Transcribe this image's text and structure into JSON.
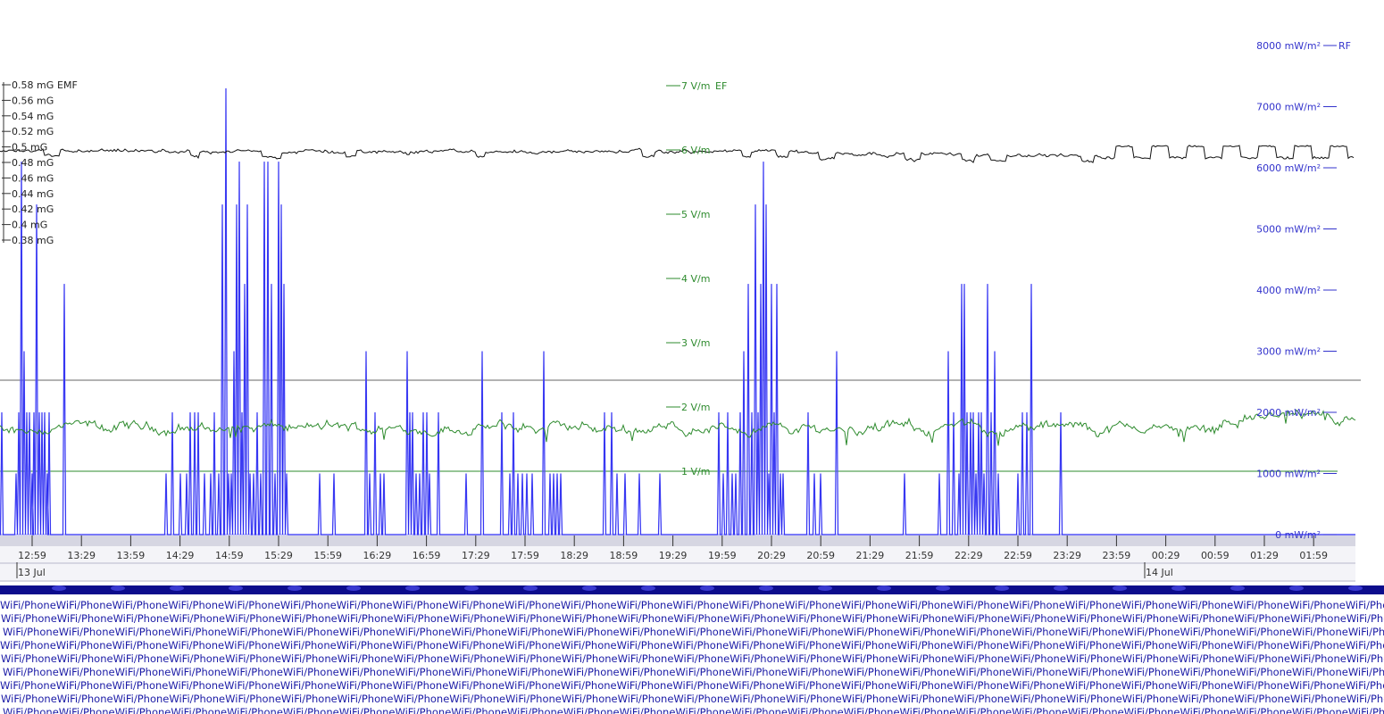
{
  "chart_data": {
    "type": "line",
    "colors": {
      "emf": "#111111",
      "ef": "#2e8b2e",
      "rf": "#2222ee",
      "rf_light": "#8a8aff",
      "axis_rf": "#3333cc"
    },
    "axes": {
      "emf": {
        "ticks": [
          "0.58 mG",
          "0.56 mG",
          "0.54 mG",
          "0.52 mG",
          "0.5 mG",
          "0.48 mG",
          "0.46 mG",
          "0.44 mG",
          "0.42 mG",
          "0.4 mG",
          "0.38 mG"
        ],
        "name": "EMF",
        "ylim": [
          0.38,
          0.58
        ]
      },
      "ef": {
        "ticks": [
          "7 V/m",
          "6 V/m",
          "5 V/m",
          "4 V/m",
          "3 V/m",
          "2 V/m",
          "1 V/m"
        ],
        "name": "EF",
        "ylim": [
          1,
          7
        ]
      },
      "rf": {
        "ticks": [
          "8000 mW/m²",
          "7000 mW/m²",
          "6000 mW/m²",
          "5000 mW/m²",
          "4000 mW/m²",
          "3000 mW/m²",
          "2000 mW/m²",
          "1000 mW/m²",
          "0 mW/m²"
        ],
        "name": "RF",
        "ylim": [
          0,
          8000
        ]
      }
    },
    "x_ticks": [
      "12:59",
      "13:29",
      "13:59",
      "14:29",
      "14:59",
      "15:29",
      "15:59",
      "16:29",
      "16:59",
      "17:29",
      "17:59",
      "18:29",
      "18:59",
      "19:29",
      "19:59",
      "20:29",
      "20:59",
      "21:29",
      "21:59",
      "22:29",
      "22:59",
      "23:29",
      "23:59",
      "00:29",
      "00:59",
      "01:29",
      "01:59"
    ],
    "date_labels": [
      "13 Jul",
      "14 Jul"
    ],
    "reference_lines": [
      {
        "axis": "emf",
        "value": 0.4
      },
      {
        "axis": "ef",
        "value": 1
      }
    ],
    "series": [
      {
        "name": "EMF",
        "axis": "emf",
        "level": 0.496,
        "range": [
          0.478,
          0.503
        ]
      },
      {
        "name": "EF",
        "axis": "ef",
        "level": 1.67,
        "range": [
          1.4,
          2.1
        ]
      },
      {
        "name": "RF",
        "axis": "rf",
        "baseline": 0,
        "spike_levels": [
          2000,
          3000,
          4000,
          5000,
          6000,
          7300
        ]
      }
    ],
    "strip_text": "WiFi/Phone"
  }
}
